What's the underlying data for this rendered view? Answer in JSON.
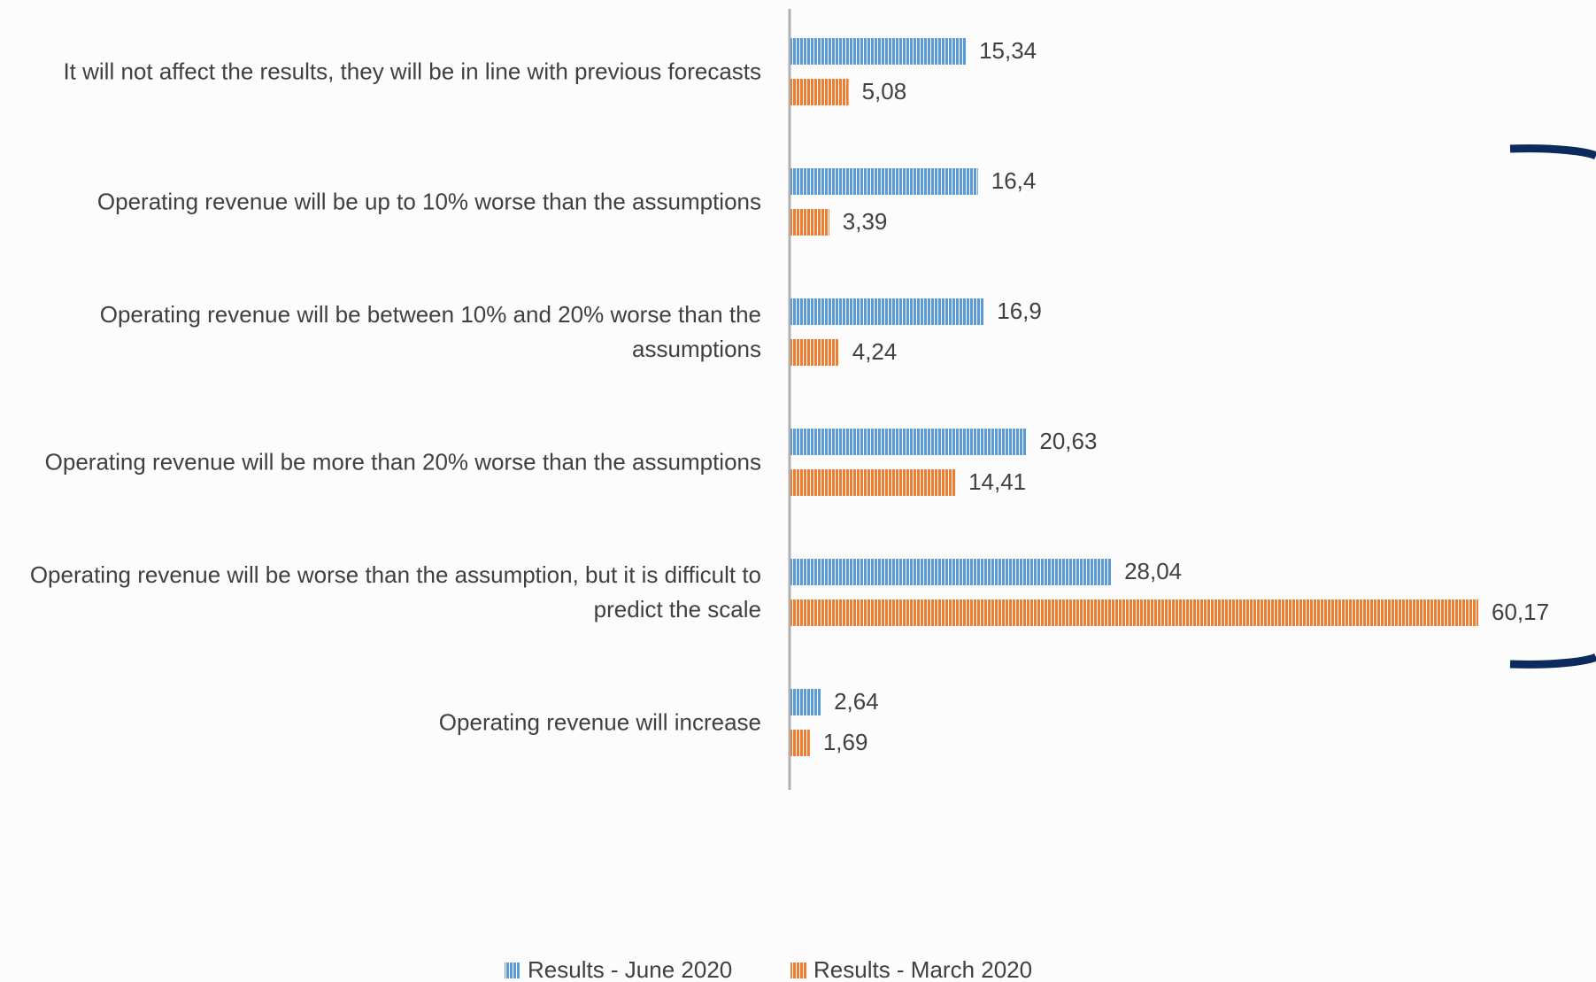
{
  "chart_data": {
    "type": "barh",
    "categories": [
      "It will not affect the results, they will be in line with previous forecasts",
      "Operating revenue will be up to 10% worse than the assumptions",
      "Operating revenue will be between 10% and 20% worse than the assumptions",
      "Operating revenue will be more than 20% worse than the assumptions",
      "Operating revenue will be worse than the assumption, but it is difficult to predict the scale",
      "Operating revenue will increase"
    ],
    "series": [
      {
        "name": "Results - June 2020",
        "color": "#5b9bd5",
        "values": [
          15.34,
          16.4,
          16.9,
          20.63,
          28.04,
          2.64
        ],
        "value_labels": [
          "15,34",
          "16,4",
          "16,9",
          "20,63",
          "28,04",
          "2,64"
        ]
      },
      {
        "name": "Results - March 2020",
        "color": "#ed7d31",
        "values": [
          5.08,
          3.39,
          4.24,
          14.41,
          60.17,
          1.69
        ],
        "value_labels": [
          "5,08",
          "3,39",
          "4,24",
          "14,41",
          "60,17",
          "1,69"
        ]
      }
    ],
    "legend": "bottom"
  }
}
